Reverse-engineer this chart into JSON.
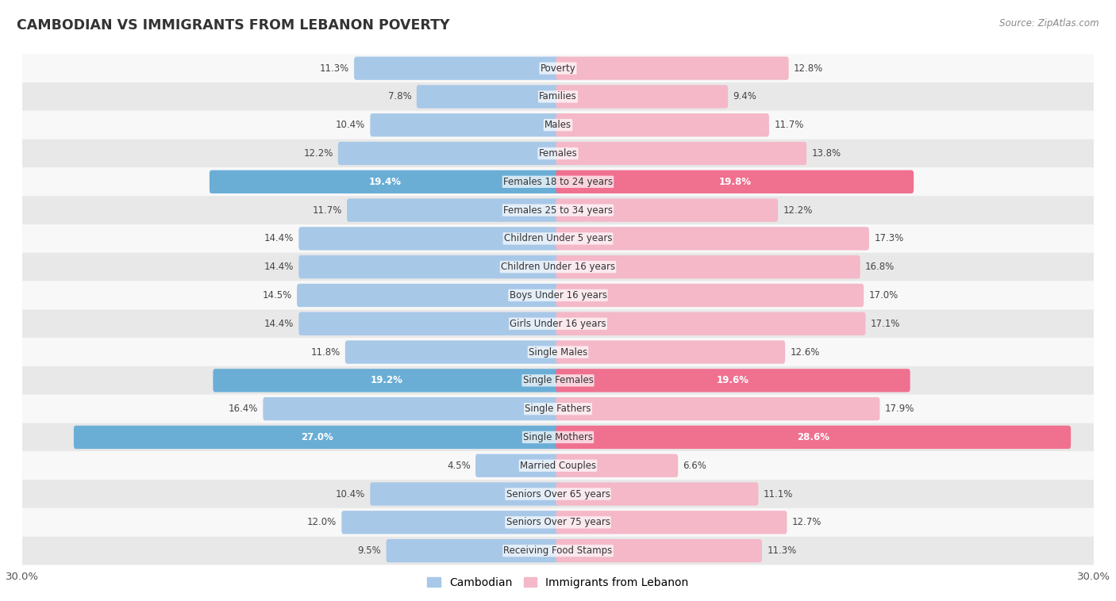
{
  "title": "CAMBODIAN VS IMMIGRANTS FROM LEBANON POVERTY",
  "source": "Source: ZipAtlas.com",
  "categories": [
    "Poverty",
    "Families",
    "Males",
    "Females",
    "Females 18 to 24 years",
    "Females 25 to 34 years",
    "Children Under 5 years",
    "Children Under 16 years",
    "Boys Under 16 years",
    "Girls Under 16 years",
    "Single Males",
    "Single Females",
    "Single Fathers",
    "Single Mothers",
    "Married Couples",
    "Seniors Over 65 years",
    "Seniors Over 75 years",
    "Receiving Food Stamps"
  ],
  "cambodian": [
    11.3,
    7.8,
    10.4,
    12.2,
    19.4,
    11.7,
    14.4,
    14.4,
    14.5,
    14.4,
    11.8,
    19.2,
    16.4,
    27.0,
    4.5,
    10.4,
    12.0,
    9.5
  ],
  "lebanon": [
    12.8,
    9.4,
    11.7,
    13.8,
    19.8,
    12.2,
    17.3,
    16.8,
    17.0,
    17.1,
    12.6,
    19.6,
    17.9,
    28.6,
    6.6,
    11.1,
    12.7,
    11.3
  ],
  "cambodian_color_normal": "#a8c8e8",
  "cambodian_color_highlight": "#6aaed6",
  "lebanon_color_normal": "#f4b8c8",
  "lebanon_color_highlight": "#f07090",
  "highlight_rows": [
    4,
    11,
    13
  ],
  "bg_color": "#f0f0f0",
  "row_bg_light": "#f8f8f8",
  "row_bg_dark": "#e8e8e8",
  "axis_max": 30.0,
  "legend_cambodian": "Cambodian",
  "legend_lebanon": "Immigrants from Lebanon"
}
